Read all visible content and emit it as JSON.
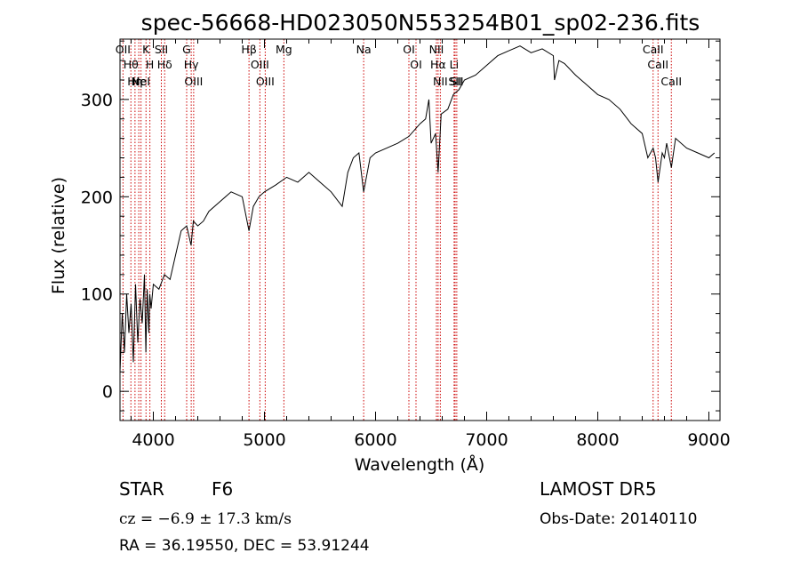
{
  "chart_data": {
    "type": "line",
    "title": "spec-56668-HD023050N553254B01_sp02-236.fits",
    "xlabel": "Wavelength (Å)",
    "ylabel": "Flux (relative)",
    "xlim": [
      3700,
      9100
    ],
    "ylim": [
      -30,
      362
    ],
    "xticks": [
      4000,
      5000,
      6000,
      7000,
      8000,
      9000
    ],
    "yticks": [
      0,
      100,
      200,
      300
    ],
    "grid": false,
    "legend": "none",
    "series": [
      {
        "x": [
          3700,
          3720,
          3740,
          3760,
          3780,
          3800,
          3820,
          3840,
          3860,
          3880,
          3900,
          3920,
          3933,
          3945,
          3960,
          3968,
          3980,
          4000,
          4050,
          4100,
          4150,
          4200,
          4250,
          4300,
          4340,
          4360,
          4400,
          4450,
          4500,
          4600,
          4700,
          4800,
          4861,
          4900,
          4950,
          5000,
          5100,
          5200,
          5300,
          5400,
          5500,
          5600,
          5700,
          5750,
          5800,
          5850,
          5893,
          5950,
          6000,
          6100,
          6200,
          6300,
          6400,
          6450,
          6480,
          6500,
          6540,
          6563,
          6590,
          6650,
          6700,
          6750,
          6800,
          6900,
          7000,
          7100,
          7200,
          7300,
          7400,
          7500,
          7600,
          7610,
          7650,
          7700,
          7800,
          7900,
          8000,
          8100,
          8200,
          8300,
          8400,
          8450,
          8498,
          8520,
          8542,
          8580,
          8600,
          8620,
          8662,
          8700,
          8800,
          8900,
          9000,
          9050
        ],
        "y": [
          20,
          80,
          40,
          100,
          60,
          90,
          30,
          110,
          50,
          95,
          70,
          120,
          40,
          105,
          60,
          100,
          85,
          110,
          105,
          120,
          115,
          140,
          165,
          170,
          150,
          175,
          170,
          175,
          185,
          195,
          205,
          200,
          165,
          190,
          200,
          205,
          212,
          220,
          215,
          225,
          215,
          205,
          190,
          225,
          240,
          245,
          205,
          240,
          245,
          250,
          255,
          262,
          275,
          280,
          300,
          255,
          265,
          225,
          285,
          290,
          305,
          310,
          320,
          325,
          335,
          345,
          350,
          355,
          348,
          352,
          345,
          320,
          340,
          337,
          325,
          315,
          305,
          300,
          290,
          275,
          265,
          240,
          250,
          240,
          215,
          245,
          240,
          255,
          230,
          260,
          250,
          245,
          240,
          245
        ]
      }
    ],
    "emission_lines": [
      {
        "wave": 3727,
        "labels": [
          "OII"
        ]
      },
      {
        "wave": 3798,
        "labels": [
          "Hθ"
        ]
      },
      {
        "wave": 3835,
        "labels": [
          "Hη"
        ]
      },
      {
        "wave": 3869,
        "labels": [
          "Ne"
        ]
      },
      {
        "wave": 3889,
        "labels": [
          "HeI"
        ]
      },
      {
        "wave": 3934,
        "labels": [
          "K"
        ]
      },
      {
        "wave": 3969,
        "labels": [
          "H"
        ]
      },
      {
        "wave": 4072,
        "labels": [
          "SII"
        ]
      },
      {
        "wave": 4102,
        "labels": [
          "Hδ"
        ]
      },
      {
        "wave": 4300,
        "labels": [
          "G"
        ]
      },
      {
        "wave": 4341,
        "labels": [
          "Hγ"
        ]
      },
      {
        "wave": 4363,
        "labels": [
          "OIII"
        ]
      },
      {
        "wave": 4861,
        "labels": [
          "Hβ"
        ]
      },
      {
        "wave": 4959,
        "labels": [
          "OIII"
        ]
      },
      {
        "wave": 5007,
        "labels": [
          "OIII"
        ]
      },
      {
        "wave": 5175,
        "labels": [
          "Mg"
        ]
      },
      {
        "wave": 5893,
        "labels": [
          "Na"
        ]
      },
      {
        "wave": 6300,
        "labels": [
          "OI"
        ]
      },
      {
        "wave": 6364,
        "labels": [
          "OI"
        ]
      },
      {
        "wave": 6548,
        "labels": [
          "NII"
        ]
      },
      {
        "wave": 6563,
        "labels": [
          "Hα"
        ]
      },
      {
        "wave": 6583,
        "labels": [
          "NII"
        ]
      },
      {
        "wave": 6707,
        "labels": [
          "Li"
        ]
      },
      {
        "wave": 6716,
        "labels": [
          "SII"
        ]
      },
      {
        "wave": 6731,
        "labels": [
          "SII"
        ]
      },
      {
        "wave": 8498,
        "labels": [
          "CaII"
        ]
      },
      {
        "wave": 8542,
        "labels": [
          "CaII"
        ]
      },
      {
        "wave": 8662,
        "labels": [
          "CaII"
        ]
      }
    ]
  },
  "info": {
    "object_type": "STAR",
    "subclass": "F6",
    "survey": "LAMOST  DR5",
    "cz": "cz = −6.9 ± 17.3 km/s",
    "obs_date": "Obs-Date: 20140110",
    "coords": "RA =  36.19550, DEC =  53.91244"
  },
  "colors": {
    "spectrum": "#000000",
    "line_markers": "#cc0000",
    "background": "#ffffff"
  }
}
